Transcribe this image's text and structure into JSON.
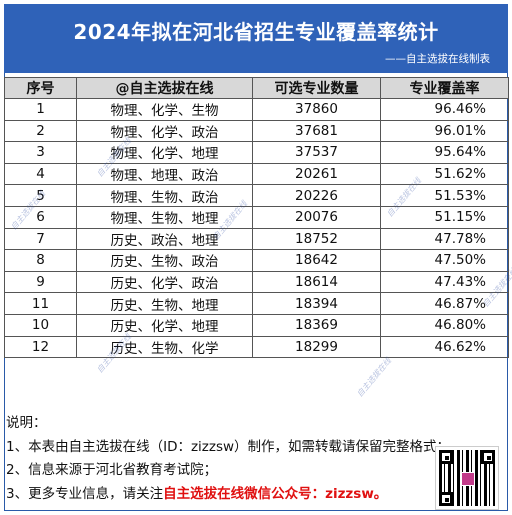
{
  "header": {
    "title": "2024年拟在河北省招生专业覆盖率统计",
    "subtitle": "——自主选拔在线制表",
    "bg_color": "#2f62b8"
  },
  "table": {
    "columns": [
      "序号",
      "@自主选拔在线",
      "可选专业数量",
      "专业覆盖率"
    ],
    "rows": [
      {
        "no": "1",
        "subjects": "物理、化学、生物",
        "count": "37860",
        "rate": "96.46%"
      },
      {
        "no": "2",
        "subjects": "物理、化学、政治",
        "count": "37681",
        "rate": "96.01%"
      },
      {
        "no": "3",
        "subjects": "物理、化学、地理",
        "count": "37537",
        "rate": "95.64%"
      },
      {
        "no": "4",
        "subjects": "物理、地理、政治",
        "count": "20261",
        "rate": "51.62%"
      },
      {
        "no": "5",
        "subjects": "物理、生物、政治",
        "count": "20226",
        "rate": "51.53%"
      },
      {
        "no": "6",
        "subjects": "物理、生物、地理",
        "count": "20076",
        "rate": "51.15%"
      },
      {
        "no": "7",
        "subjects": "历史、政治、地理",
        "count": "18752",
        "rate": "47.78%"
      },
      {
        "no": "8",
        "subjects": "历史、生物、政治",
        "count": "18642",
        "rate": "47.50%"
      },
      {
        "no": "9",
        "subjects": "历史、化学、政治",
        "count": "18614",
        "rate": "47.43%"
      },
      {
        "no": "11",
        "subjects": "历史、生物、地理",
        "count": "18394",
        "rate": "46.87%"
      },
      {
        "no": "10",
        "subjects": "历史、化学、地理",
        "count": "18369",
        "rate": "46.80%"
      },
      {
        "no": "12",
        "subjects": "历史、生物、化学",
        "count": "18299",
        "rate": "46.62%"
      }
    ]
  },
  "notes": {
    "heading": "说明：",
    "line1": "1、本表由自主选拔在线（ID：zizzsw）制作，如需转载请保留完整格式；",
    "line2": "2、信息来源于河北省教育考试院；",
    "line3_prefix": "3、更多专业信息，请关注",
    "line3_highlight": "自主选拔在线微信公众号：zizzsw。"
  },
  "watermark": "自主选拔在线"
}
